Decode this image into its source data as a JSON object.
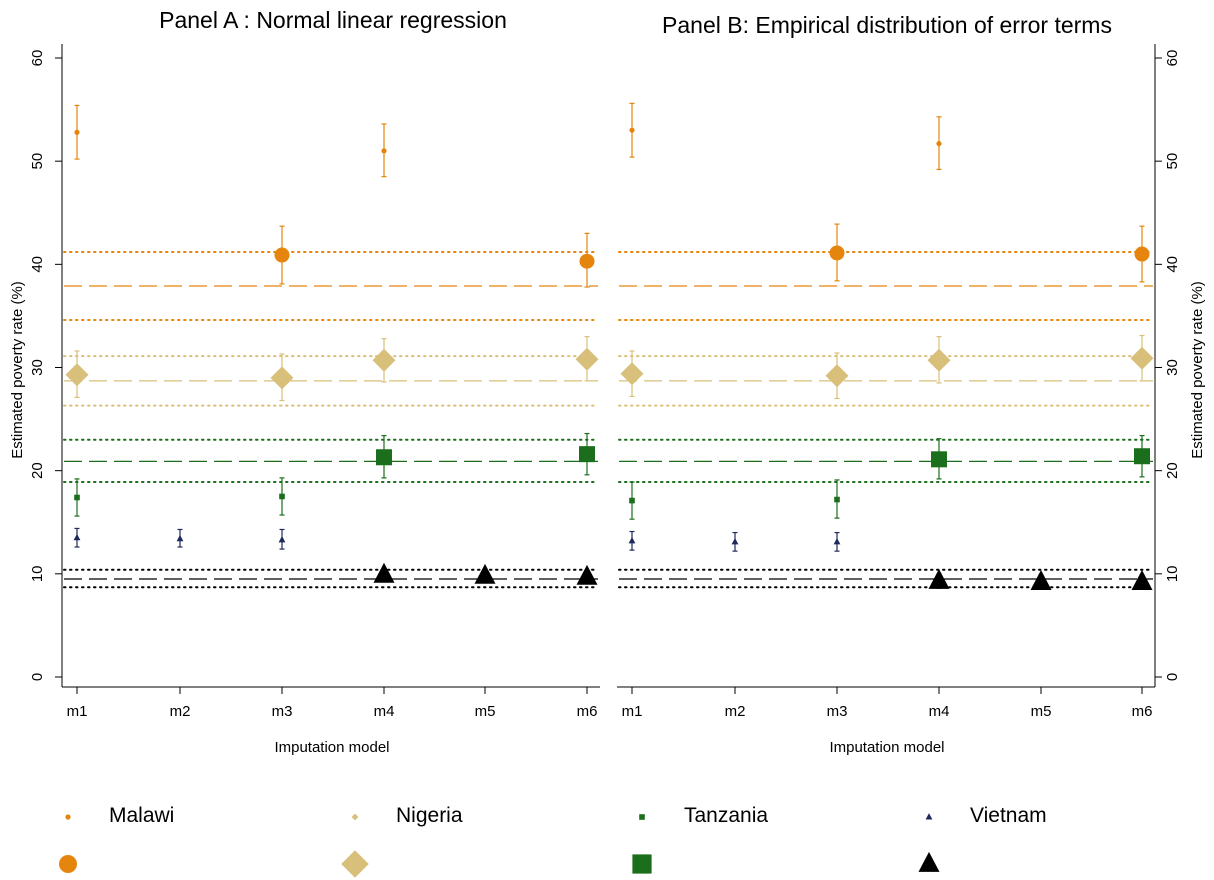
{
  "chart_data": [
    {
      "panel": "A",
      "type": "scatter",
      "title": "Panel A : Normal linear regression",
      "xlabel": "Imputation model",
      "ylabel": "Estimated poverty rate (%)",
      "categories": [
        "m1",
        "m2",
        "m3",
        "m4",
        "m5",
        "m6"
      ],
      "ylim": [
        0,
        60
      ],
      "yticks": [
        0,
        10,
        20,
        30,
        40,
        50,
        60
      ],
      "grid": false,
      "series": [
        {
          "name": "Malawi",
          "color": "#E6850E",
          "marker": "circle",
          "x": [
            "m1",
            "m3",
            "m4",
            "m6"
          ],
          "values": [
            52.8,
            40.9,
            51.0,
            40.3
          ],
          "lower": [
            50.2,
            38.1,
            48.5,
            37.8
          ],
          "upper": [
            55.4,
            43.7,
            53.6,
            43.0
          ],
          "large": [
            false,
            true,
            false,
            true
          ]
        },
        {
          "name": "Nigeria",
          "color": "#D9C07A",
          "marker": "diamond",
          "x": [
            "m1",
            "m3",
            "m4",
            "m6"
          ],
          "values": [
            29.3,
            29.0,
            30.7,
            30.8
          ],
          "lower": [
            27.1,
            26.8,
            28.6,
            28.7
          ],
          "upper": [
            31.6,
            31.3,
            32.8,
            33.0
          ],
          "large": [
            true,
            true,
            true,
            true
          ]
        },
        {
          "name": "Tanzania",
          "color": "#1B6E1B",
          "marker": "square",
          "x": [
            "m1",
            "m3",
            "m4",
            "m6"
          ],
          "values": [
            17.4,
            17.5,
            21.3,
            21.6
          ],
          "lower": [
            15.6,
            15.7,
            19.3,
            19.6
          ],
          "upper": [
            19.2,
            19.3,
            23.4,
            23.6
          ],
          "large": [
            false,
            false,
            true,
            true
          ]
        },
        {
          "name": "Vietnam",
          "color": "#1F2A5C",
          "marker": "triangle",
          "x": [
            "m1",
            "m2",
            "m3",
            "m4",
            "m5",
            "m6"
          ],
          "values": [
            13.5,
            13.4,
            13.3,
            9.9,
            9.8,
            9.7
          ],
          "lower": [
            12.6,
            12.6,
            12.4,
            9.3,
            9.2,
            9.1
          ],
          "upper": [
            14.4,
            14.3,
            14.3,
            10.5,
            10.4,
            10.3
          ],
          "large": [
            false,
            false,
            false,
            true,
            true,
            true
          ]
        }
      ],
      "reference_lines": [
        {
          "country": "Malawi",
          "color": "#E6850E",
          "mean": 37.9,
          "lower": 34.6,
          "upper": 41.2
        },
        {
          "country": "Nigeria",
          "color": "#D9C07A",
          "mean": 28.7,
          "lower": 26.3,
          "upper": 31.1
        },
        {
          "country": "Tanzania",
          "color": "#1B6E1B",
          "mean": 20.9,
          "lower": 18.9,
          "upper": 23.0
        },
        {
          "country": "Vietnam",
          "color": "#000000",
          "mean": 9.5,
          "lower": 8.7,
          "upper": 10.4
        }
      ]
    },
    {
      "panel": "B",
      "type": "scatter",
      "title": "Panel B: Empirical distribution of error terms",
      "xlabel": "Imputation model",
      "ylabel": "Estimated poverty rate (%)",
      "categories": [
        "m1",
        "m2",
        "m3",
        "m4",
        "m5",
        "m6"
      ],
      "ylim": [
        0,
        60
      ],
      "yticks": [
        0,
        10,
        20,
        30,
        40,
        50,
        60
      ],
      "grid": false,
      "series": [
        {
          "name": "Malawi",
          "color": "#E6850E",
          "marker": "circle",
          "x": [
            "m1",
            "m3",
            "m4",
            "m6"
          ],
          "values": [
            53.0,
            41.1,
            51.7,
            41.0
          ],
          "lower": [
            50.4,
            38.4,
            49.2,
            38.3
          ],
          "upper": [
            55.6,
            43.9,
            54.3,
            43.7
          ],
          "large": [
            false,
            true,
            false,
            true
          ]
        },
        {
          "name": "Nigeria",
          "color": "#D9C07A",
          "marker": "diamond",
          "x": [
            "m1",
            "m3",
            "m4",
            "m6"
          ],
          "values": [
            29.4,
            29.2,
            30.7,
            30.9
          ],
          "lower": [
            27.2,
            27.0,
            28.5,
            28.7
          ],
          "upper": [
            31.6,
            31.4,
            33.0,
            33.1
          ],
          "large": [
            true,
            true,
            true,
            true
          ]
        },
        {
          "name": "Tanzania",
          "color": "#1B6E1B",
          "marker": "square",
          "x": [
            "m1",
            "m3",
            "m4",
            "m6"
          ],
          "values": [
            17.1,
            17.2,
            21.1,
            21.4
          ],
          "lower": [
            15.3,
            15.4,
            19.2,
            19.4
          ],
          "upper": [
            18.9,
            19.1,
            23.1,
            23.4
          ],
          "large": [
            false,
            false,
            true,
            true
          ]
        },
        {
          "name": "Vietnam",
          "color": "#1F2A5C",
          "marker": "triangle",
          "x": [
            "m1",
            "m2",
            "m3",
            "m4",
            "m5",
            "m6"
          ],
          "values": [
            13.2,
            13.1,
            13.1,
            9.3,
            9.2,
            9.2
          ],
          "lower": [
            12.3,
            12.2,
            12.2,
            8.6,
            8.5,
            8.5
          ],
          "upper": [
            14.1,
            14.0,
            14.0,
            10.0,
            9.9,
            9.9
          ],
          "large": [
            false,
            false,
            false,
            true,
            true,
            true
          ]
        }
      ],
      "reference_lines": [
        {
          "country": "Malawi",
          "color": "#E6850E",
          "mean": 37.9,
          "lower": 34.6,
          "upper": 41.2
        },
        {
          "country": "Nigeria",
          "color": "#D9C07A",
          "mean": 28.7,
          "lower": 26.3,
          "upper": 31.1
        },
        {
          "country": "Tanzania",
          "color": "#1B6E1B",
          "mean": 20.9,
          "lower": 18.9,
          "upper": 23.0
        },
        {
          "country": "Vietnam",
          "color": "#000000",
          "mean": 9.5,
          "lower": 8.7,
          "upper": 10.4
        }
      ]
    }
  ],
  "legend": {
    "placement": "bottom",
    "items": [
      {
        "name": "Malawi",
        "color": "#E6850E",
        "marker": "circle"
      },
      {
        "name": "Nigeria",
        "color": "#D9C07A",
        "marker": "diamond"
      },
      {
        "name": "Tanzania",
        "color": "#1B6E1B",
        "marker": "square"
      },
      {
        "name": "Vietnam",
        "color": "#1F2A5C",
        "marker": "triangle",
        "large_color": "#000000"
      }
    ]
  }
}
